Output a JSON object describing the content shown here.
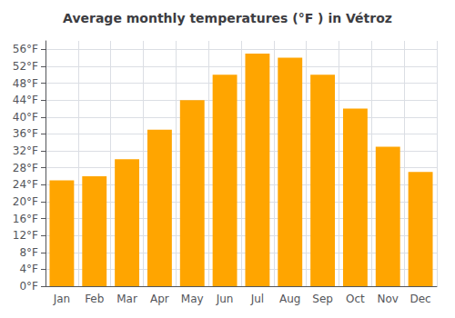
{
  "chart_data": {
    "type": "bar",
    "title": "Average monthly temperatures (°F ) in Vétroz",
    "categories": [
      "Jan",
      "Feb",
      "Mar",
      "Apr",
      "May",
      "Jun",
      "Jul",
      "Aug",
      "Sep",
      "Oct",
      "Nov",
      "Dec"
    ],
    "values": [
      25,
      26,
      30,
      37,
      44,
      50,
      55,
      54,
      50,
      42,
      33,
      27
    ],
    "color": "#FFA500",
    "ylim": [
      0,
      58
    ],
    "yticks": [
      {
        "value": 0,
        "label": "0°F"
      },
      {
        "value": 4,
        "label": "4°F"
      },
      {
        "value": 8,
        "label": "8°F"
      },
      {
        "value": 12,
        "label": "12°F"
      },
      {
        "value": 16,
        "label": "16°F"
      },
      {
        "value": 20,
        "label": "20°F"
      },
      {
        "value": 24,
        "label": "24°F"
      },
      {
        "value": 28,
        "label": "28°F"
      },
      {
        "value": 32,
        "label": "32°F"
      },
      {
        "value": 36,
        "label": "36°F"
      },
      {
        "value": 40,
        "label": "40°F"
      },
      {
        "value": 44,
        "label": "44°F"
      },
      {
        "value": 48,
        "label": "48°F"
      },
      {
        "value": 52,
        "label": "52°F"
      },
      {
        "value": 56,
        "label": "56°F"
      }
    ],
    "grid": true
  }
}
